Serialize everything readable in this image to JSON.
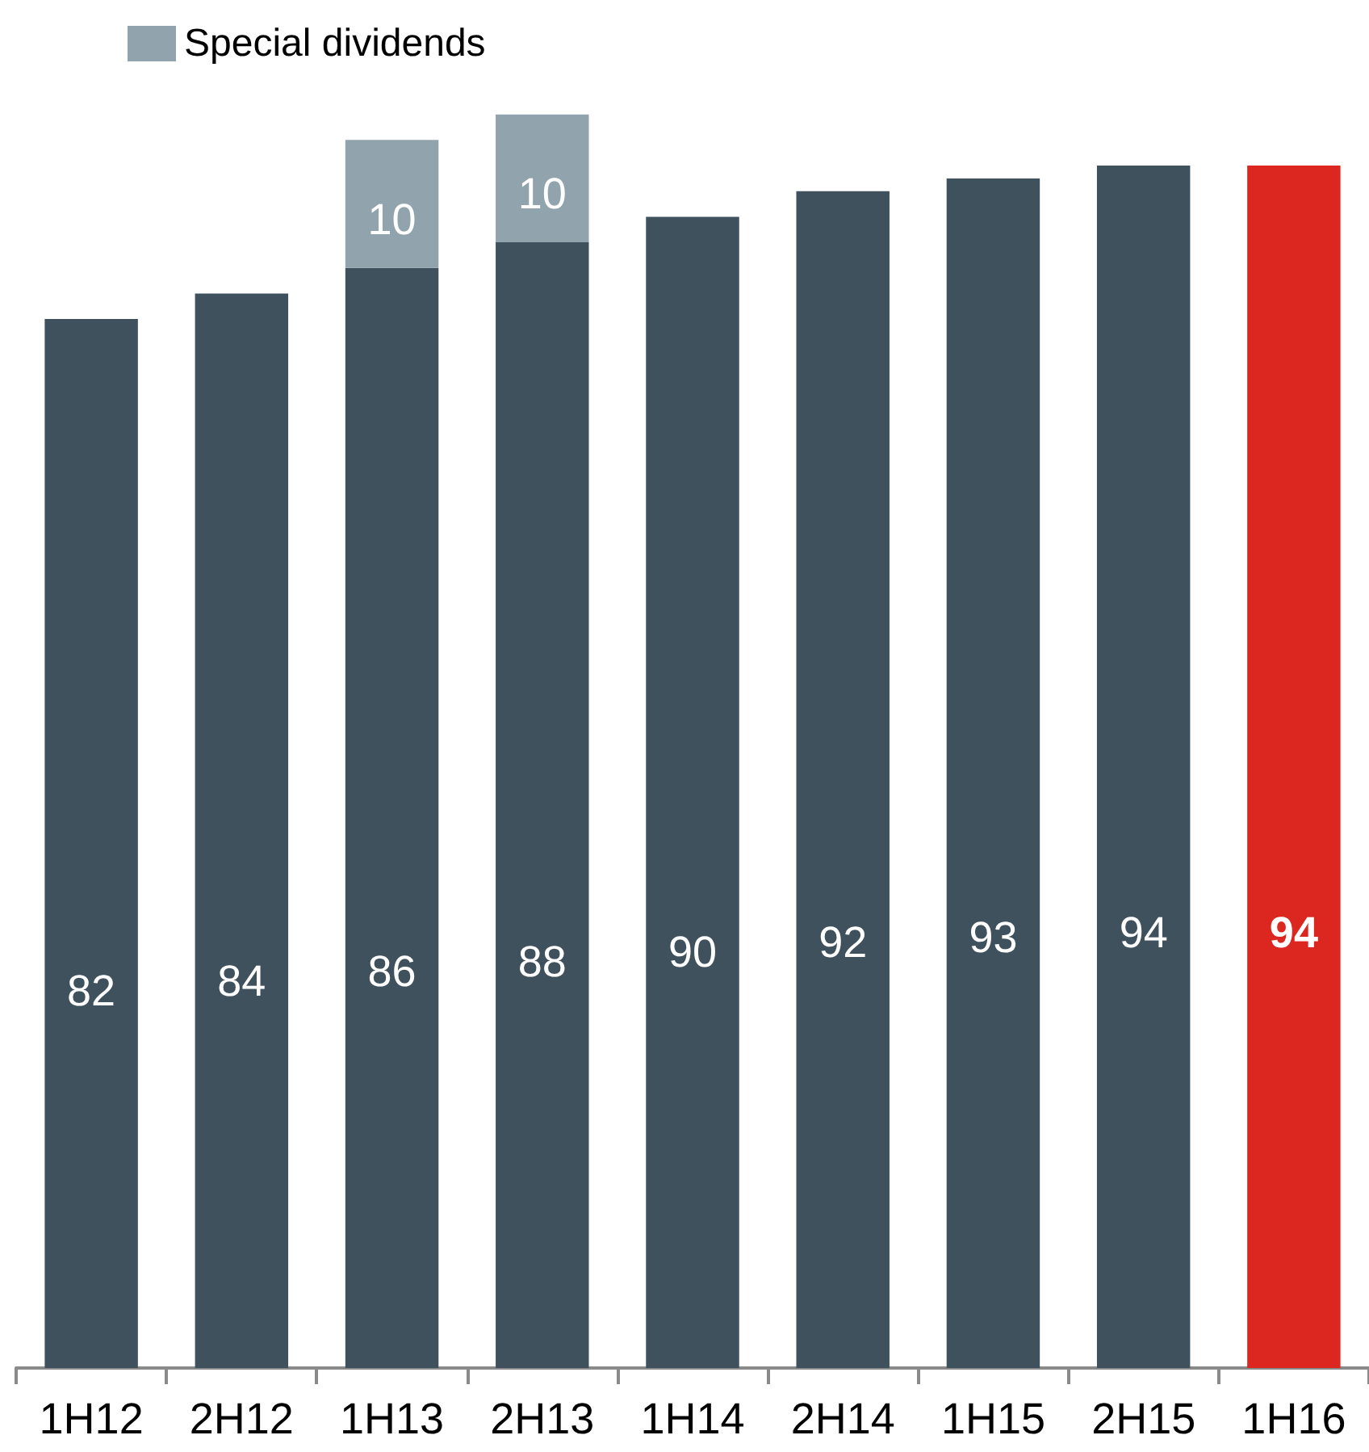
{
  "chart_data": {
    "type": "bar",
    "stacked": true,
    "data_labels": true,
    "legend": "top left",
    "grid": false,
    "categories": [
      "1H12",
      "2H12",
      "1H13",
      "2H13",
      "1H14",
      "2H14",
      "1H15",
      "2H15",
      "1H16"
    ],
    "series": [
      {
        "color": "#40515e",
        "colors": [
          "#40515e",
          "#40515e",
          "#40515e",
          "#40515e",
          "#40515e",
          "#40515e",
          "#40515e",
          "#40515e",
          "#dc2720"
        ],
        "values": [
          82,
          84,
          86,
          88,
          90,
          92,
          93,
          94,
          94
        ]
      },
      {
        "name": "Special dividends",
        "color": "#91a3ac",
        "values": [
          null,
          null,
          10,
          10,
          null,
          null,
          null,
          null,
          null
        ]
      }
    ]
  }
}
